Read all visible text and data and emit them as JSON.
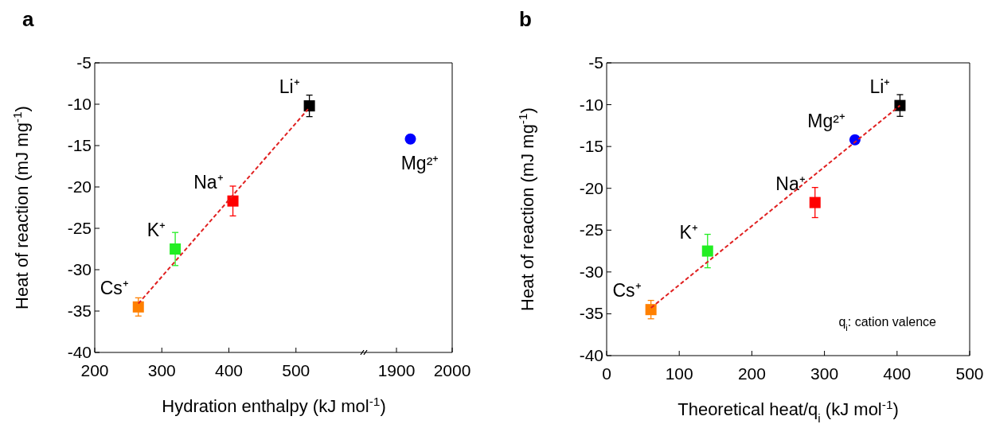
{
  "chart_data": [
    {
      "type": "scatter",
      "title": "a",
      "xlabel": "Hydration enthalpy (kJ mol$^{-1}$)",
      "ylabel": "Heat of reaction (mJ mg$^{-1}$)",
      "xlim": [
        200,
        600
      ],
      "xticks": [
        200,
        300,
        400,
        500
      ],
      "ylim": [
        -40,
        -5
      ],
      "yticks": [
        -40,
        -35,
        -30,
        -25,
        -20,
        -15,
        -10,
        -5
      ],
      "marker": "square",
      "series": [
        {
          "name": "Cs⁺",
          "color": "#ff8000",
          "x": [
            265
          ],
          "values": [
            -34.5
          ],
          "errors": [
            1.1
          ]
        },
        {
          "name": "K⁺",
          "color": "#22ee22",
          "x": [
            320
          ],
          "values": [
            -27.5
          ],
          "errors": [
            2
          ]
        },
        {
          "name": "Na⁺",
          "color": "#ff0000",
          "x": [
            406
          ],
          "values": [
            -21.7
          ],
          "errors": [
            1.8
          ]
        },
        {
          "name": "Li⁺",
          "color": "#000000",
          "x": [
            520
          ],
          "values": [
            -10.2
          ],
          "errors": [
            1.3
          ]
        },
        {
          "type": "line",
          "color": "#e02020",
          "line_style": "dashed",
          "marker": "none",
          "x": [
            265,
            518
          ],
          "values": [
            -34.1,
            -10.6
          ]
        }
      ]
    },
    {
      "type": "scatter",
      "xlim": [
        1840,
        2000
      ],
      "xticks": [
        1900,
        2000
      ],
      "ylim": [
        -40,
        -5
      ],
      "tick_labels": "x",
      "marker": "circle",
      "series": [
        {
          "name": "Mg²⁺",
          "color": "#0000ff",
          "x": [
            1925
          ],
          "values": [
            -14.2
          ]
        }
      ]
    },
    {
      "type": "scatter",
      "title": "b",
      "xlabel": "Theoretical heat/q$_{i}$ (kJ mol$^{-1}$)",
      "ylabel": "Heat of reaction (mJ mg$^{-1}$)",
      "xlim": [
        0,
        500
      ],
      "xticks": [
        0,
        100,
        200,
        300,
        400,
        500
      ],
      "ylim": [
        -40,
        -5
      ],
      "yticks": [
        -40,
        -35,
        -30,
        -25,
        -20,
        -15,
        -10,
        -5
      ],
      "marker": "square",
      "annotations": [
        "q$_{i}$: cation valence"
      ],
      "series": [
        {
          "name": "Cs⁺",
          "color": "#ff8000",
          "x": [
            61
          ],
          "values": [
            -34.5
          ],
          "errors": [
            1.1
          ]
        },
        {
          "name": "K⁺",
          "color": "#22ee22",
          "x": [
            139
          ],
          "values": [
            -27.5
          ],
          "errors": [
            2
          ]
        },
        {
          "name": "Na⁺",
          "color": "#ff0000",
          "x": [
            287
          ],
          "values": [
            -21.7
          ],
          "errors": [
            1.8
          ]
        },
        {
          "name": "Mg²⁺",
          "color": "#0000ff",
          "x": [
            342
          ],
          "values": [
            -14.2
          ],
          "marker": "circle"
        },
        {
          "name": "Li⁺",
          "color": "#000000",
          "x": [
            404
          ],
          "values": [
            -10.1
          ],
          "errors": [
            1.3
          ]
        },
        {
          "type": "line",
          "color": "#e02020",
          "line_style": "dashed",
          "marker": "none",
          "x": [
            61,
            404
          ],
          "values": [
            -34.3,
            -10.1
          ]
        }
      ]
    }
  ]
}
